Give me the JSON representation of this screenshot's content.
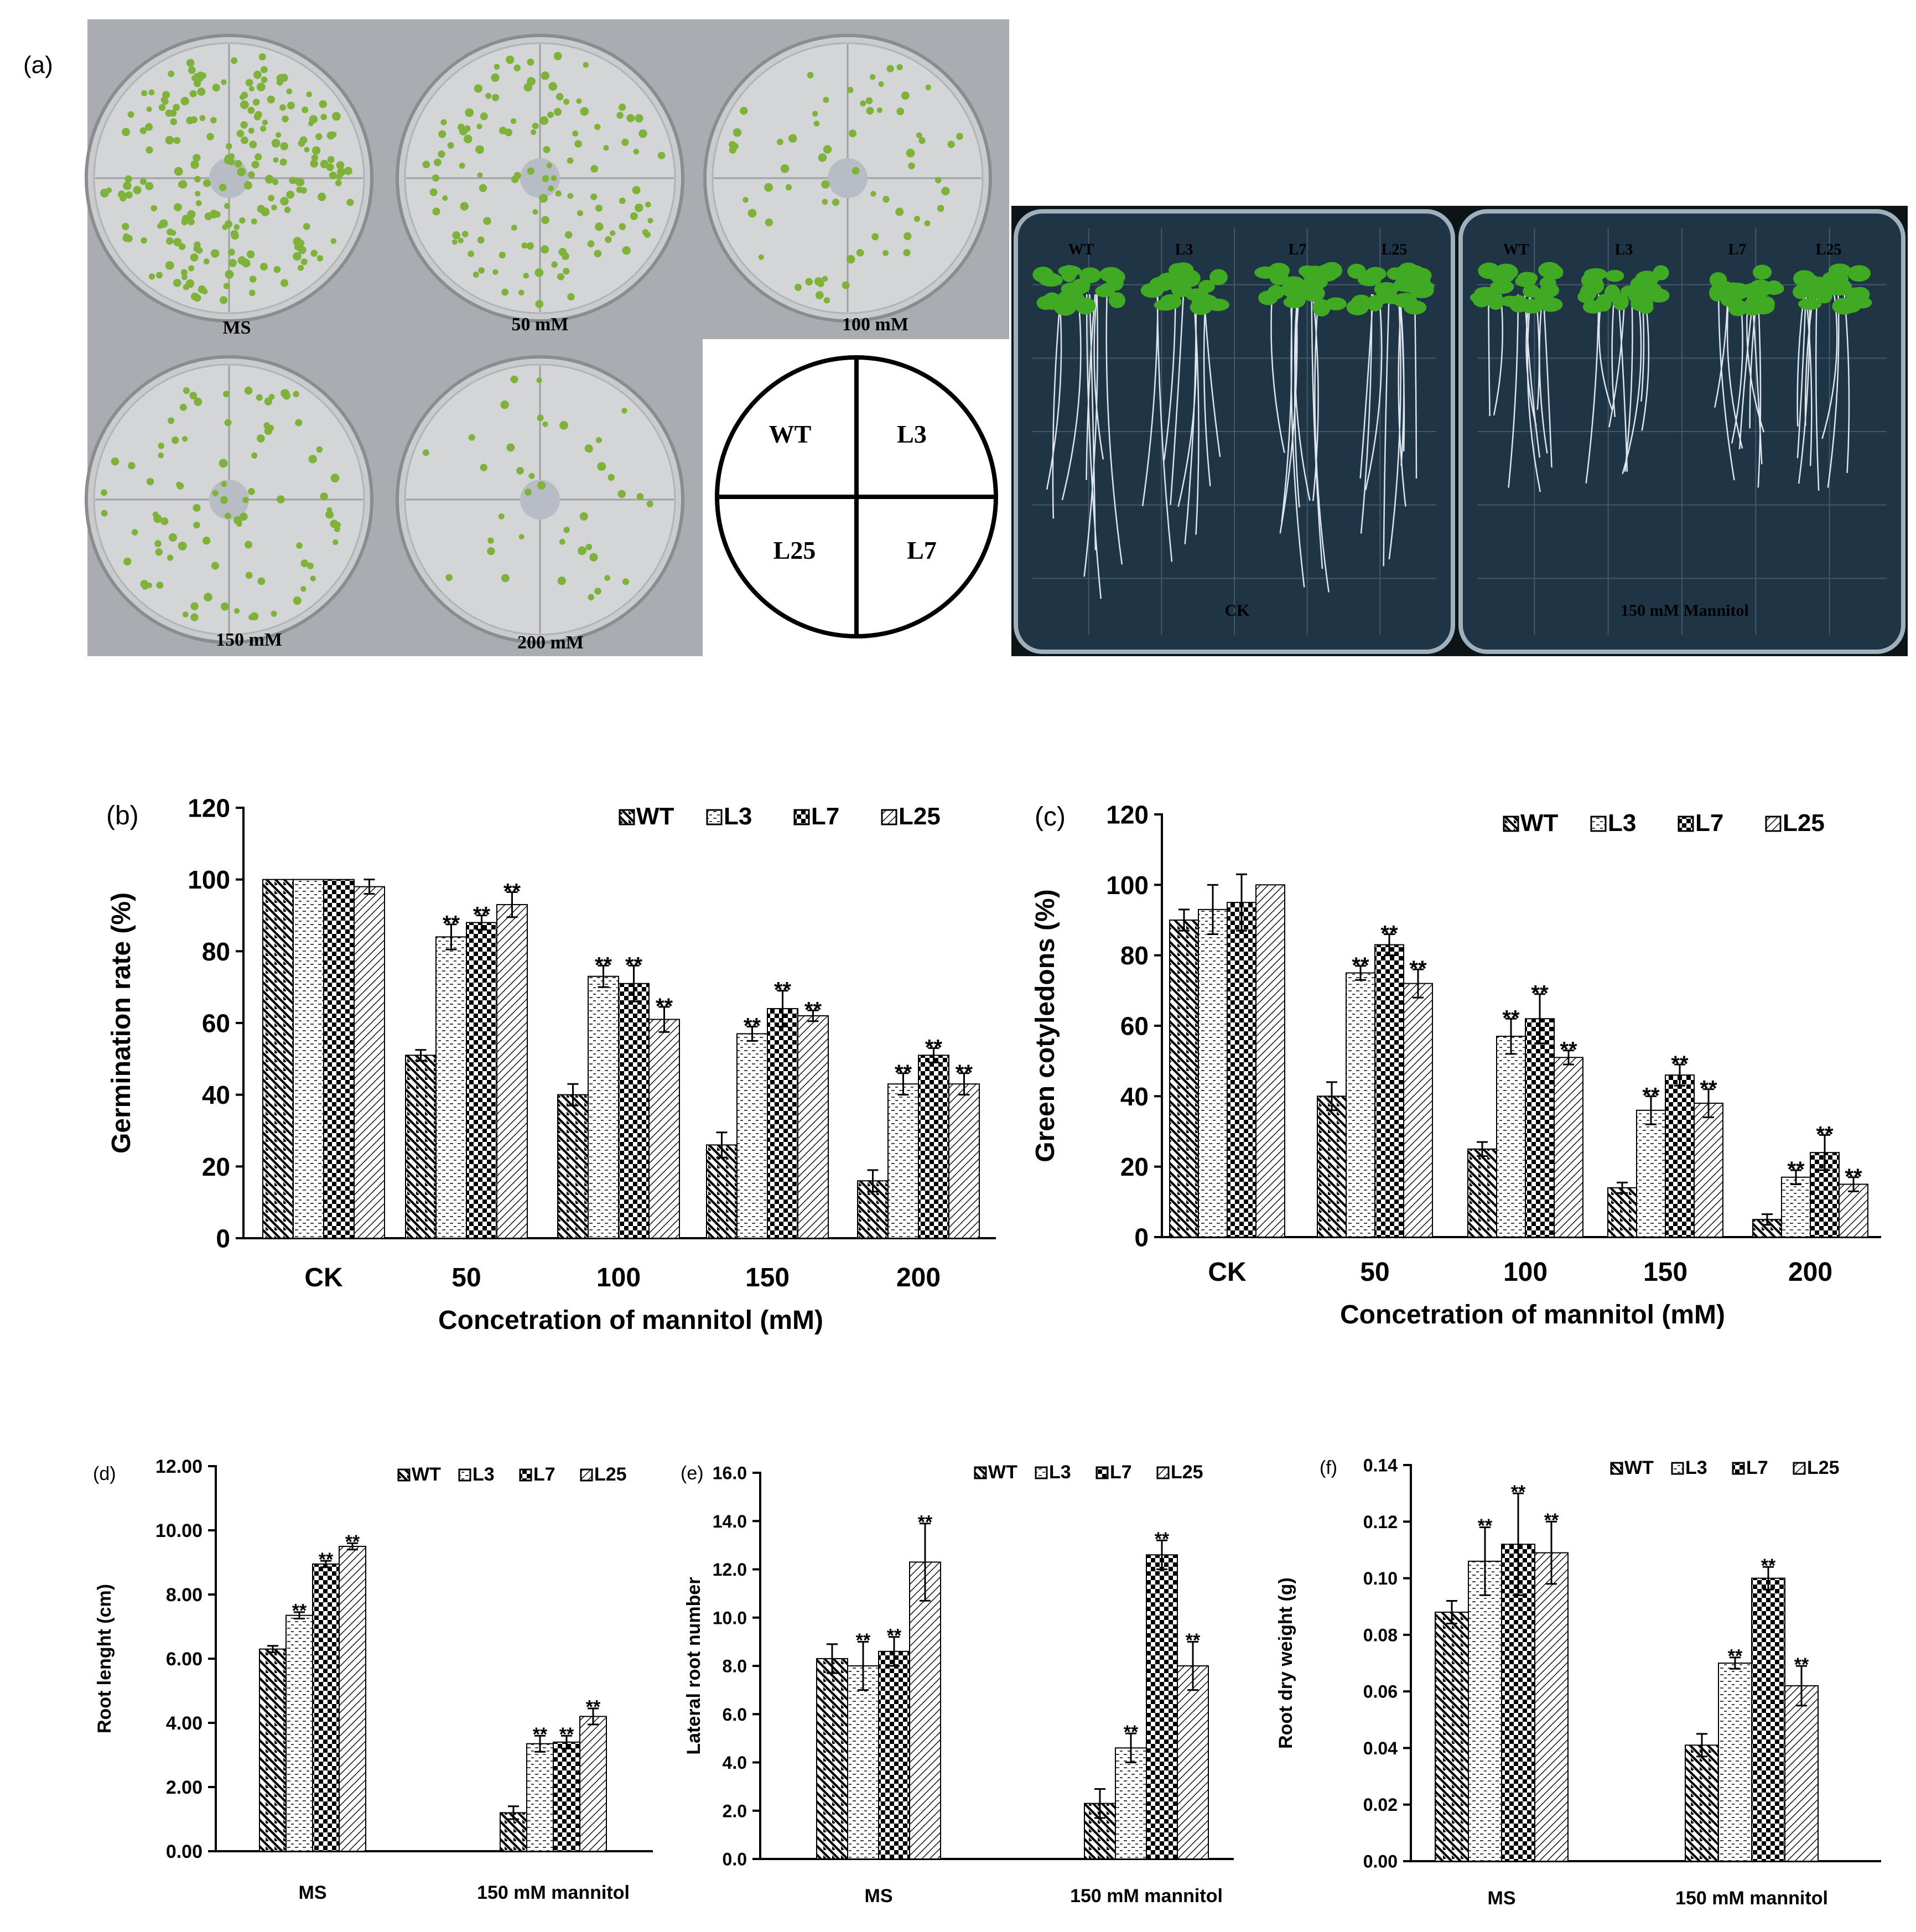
{
  "panel_a": {
    "label": "(a)",
    "plates": [
      {
        "label": "MS",
        "density": 1.0
      },
      {
        "label": "50 mM",
        "density": 0.55
      },
      {
        "label": "100 mM",
        "density": 0.3
      },
      {
        "label": "150 mM",
        "density": 0.4
      },
      {
        "label": "200 mM",
        "density": 0.18
      }
    ],
    "legend_quadrants": [
      "WT",
      "L3",
      "L25",
      "L7"
    ],
    "root_plates": [
      {
        "label": "CK",
        "lines": [
          "WT",
          "L3",
          "L7",
          "L25"
        ]
      },
      {
        "label": "150 mM Mannitol",
        "lines": [
          "WT",
          "L3",
          "L7",
          "L25"
        ]
      }
    ]
  },
  "colors": {
    "ink": "#000000",
    "plate_bg": "#a9acb0",
    "seedling": "#7fb23a",
    "leaf": "#3faa22",
    "root_bg": "#1f3445",
    "root": "#dde6ee"
  },
  "chart_data": [
    {
      "id": "b",
      "panel_label": "(b)",
      "type": "bar",
      "xlabel": "Concetration of mannitol (mM)",
      "ylabel": "Germination rate (%)",
      "ylim": [
        0,
        120
      ],
      "yticks": [
        "0",
        "20",
        "40",
        "60",
        "80",
        "100",
        "120"
      ],
      "categories": [
        "CK",
        "50",
        "100",
        "150",
        "200"
      ],
      "legend_placement": "top-right",
      "grid": false,
      "series": [
        {
          "name": "WT",
          "pattern": "wt",
          "values": [
            100,
            51,
            40,
            26,
            16
          ],
          "errors": [
            0,
            1.5,
            3,
            3.5,
            3
          ],
          "sig": [
            "",
            "",
            "",
            "",
            ""
          ]
        },
        {
          "name": "L3",
          "pattern": "l3",
          "values": [
            100,
            84,
            73,
            57,
            43
          ],
          "errors": [
            0,
            3.5,
            3,
            2,
            3
          ],
          "sig": [
            "",
            "**",
            "**",
            "**",
            "**"
          ]
        },
        {
          "name": "L7",
          "pattern": "l7",
          "values": [
            100,
            88,
            71,
            64,
            51
          ],
          "errors": [
            0,
            2,
            5,
            5,
            2
          ],
          "sig": [
            "",
            "**",
            "**",
            "**",
            "**"
          ]
        },
        {
          "name": "L25",
          "pattern": "l25",
          "values": [
            98,
            93,
            61,
            62,
            43
          ],
          "errors": [
            2,
            3.5,
            3.5,
            1.5,
            3
          ],
          "sig": [
            "",
            "**",
            "**",
            "**",
            "**"
          ]
        }
      ]
    },
    {
      "id": "c",
      "panel_label": "(c)",
      "type": "bar",
      "xlabel": "Concetration of mannitol (mM)",
      "ylabel": "Green cotyledons (%)",
      "ylim": [
        0,
        120
      ],
      "yticks": [
        "0",
        "20",
        "40",
        "60",
        "80",
        "100",
        "120"
      ],
      "categories": [
        "CK",
        "50",
        "100",
        "150",
        "200"
      ],
      "legend_placement": "top-right",
      "grid": false,
      "series": [
        {
          "name": "WT",
          "pattern": "wt",
          "values": [
            90,
            40,
            25,
            14,
            5
          ],
          "errors": [
            3,
            4,
            2,
            1.5,
            1.5
          ],
          "sig": [
            "",
            "",
            "",
            "",
            ""
          ]
        },
        {
          "name": "L3",
          "pattern": "l3",
          "values": [
            93,
            75,
            57,
            36,
            17
          ],
          "errors": [
            7,
            2,
            5,
            4,
            2
          ],
          "sig": [
            "",
            "**",
            "**",
            "**",
            "**"
          ]
        },
        {
          "name": "L7",
          "pattern": "l7",
          "values": [
            95,
            83,
            62,
            46,
            24
          ],
          "errors": [
            8,
            3,
            7,
            3,
            5
          ],
          "sig": [
            "",
            "**",
            "**",
            "**",
            "**"
          ]
        },
        {
          "name": "L25",
          "pattern": "l25",
          "values": [
            100,
            72,
            51,
            38,
            15
          ],
          "errors": [
            0,
            4,
            2,
            4,
            2
          ],
          "sig": [
            "",
            "**",
            "**",
            "**",
            "**"
          ]
        }
      ]
    },
    {
      "id": "d",
      "panel_label": "(d)",
      "type": "bar",
      "xlabel": "",
      "ylabel": "Root lenght (cm)",
      "ylim": [
        0,
        12
      ],
      "yticks": [
        "0.00",
        "2.00",
        "4.00",
        "6.00",
        "8.00",
        "10.00",
        "12.00"
      ],
      "categories": [
        "MS",
        "150 mM mannitol"
      ],
      "legend_placement": "top-right",
      "grid": false,
      "series": [
        {
          "name": "WT",
          "pattern": "wt",
          "values": [
            6.3,
            1.2
          ],
          "errors": [
            0.1,
            0.2
          ],
          "sig": [
            "",
            ""
          ]
        },
        {
          "name": "L3",
          "pattern": "l3",
          "values": [
            7.35,
            3.35
          ],
          "errors": [
            0.1,
            0.25
          ],
          "sig": [
            "**",
            "**"
          ]
        },
        {
          "name": "L7",
          "pattern": "l7",
          "values": [
            8.95,
            3.4
          ],
          "errors": [
            0.1,
            0.2
          ],
          "sig": [
            "**",
            "**"
          ]
        },
        {
          "name": "L25",
          "pattern": "l25",
          "values": [
            9.5,
            4.2
          ],
          "errors": [
            0.1,
            0.25
          ],
          "sig": [
            "**",
            "**"
          ]
        }
      ]
    },
    {
      "id": "e",
      "panel_label": "(e)",
      "type": "bar",
      "xlabel": "",
      "ylabel": "Lateral root number",
      "ylim": [
        0,
        16
      ],
      "yticks": [
        "0.0",
        "2.0",
        "4.0",
        "6.0",
        "8.0",
        "10.0",
        "12.0",
        "14.0",
        "16.0"
      ],
      "categories": [
        "MS",
        "150 mM mannitol"
      ],
      "legend_placement": "top-right",
      "grid": false,
      "series": [
        {
          "name": "WT",
          "pattern": "wt",
          "values": [
            8.3,
            2.3
          ],
          "errors": [
            0.6,
            0.6
          ],
          "sig": [
            "",
            ""
          ]
        },
        {
          "name": "L3",
          "pattern": "l3",
          "values": [
            8.0,
            4.6
          ],
          "errors": [
            1.0,
            0.6
          ],
          "sig": [
            "**",
            "**"
          ]
        },
        {
          "name": "L7",
          "pattern": "l7",
          "values": [
            8.6,
            12.6
          ],
          "errors": [
            0.6,
            0.6
          ],
          "sig": [
            "**",
            "**"
          ]
        },
        {
          "name": "L25",
          "pattern": "l25",
          "values": [
            12.3,
            8.0
          ],
          "errors": [
            1.6,
            1.0
          ],
          "sig": [
            "**",
            "**"
          ]
        }
      ]
    },
    {
      "id": "f",
      "panel_label": "(f)",
      "type": "bar",
      "xlabel": "",
      "ylabel": "Root dry weight (g)",
      "ylim": [
        0,
        0.14
      ],
      "yticks": [
        "0.00",
        "0.02",
        "0.04",
        "0.06",
        "0.08",
        "0.10",
        "0.12",
        "0.14"
      ],
      "categories": [
        "MS",
        "150 mM mannitol"
      ],
      "legend_placement": "top-right",
      "grid": false,
      "series": [
        {
          "name": "WT",
          "pattern": "wt",
          "values": [
            0.088,
            0.041
          ],
          "errors": [
            0.004,
            0.004
          ],
          "sig": [
            "",
            ""
          ]
        },
        {
          "name": "L3",
          "pattern": "l3",
          "values": [
            0.106,
            0.07
          ],
          "errors": [
            0.012,
            0.002
          ],
          "sig": [
            "**",
            "**"
          ]
        },
        {
          "name": "L7",
          "pattern": "l7",
          "values": [
            0.112,
            0.1
          ],
          "errors": [
            0.018,
            0.004
          ],
          "sig": [
            "**",
            "**"
          ]
        },
        {
          "name": "L25",
          "pattern": "l25",
          "values": [
            0.109,
            0.062
          ],
          "errors": [
            0.011,
            0.007
          ],
          "sig": [
            "**",
            "**"
          ]
        }
      ]
    }
  ]
}
